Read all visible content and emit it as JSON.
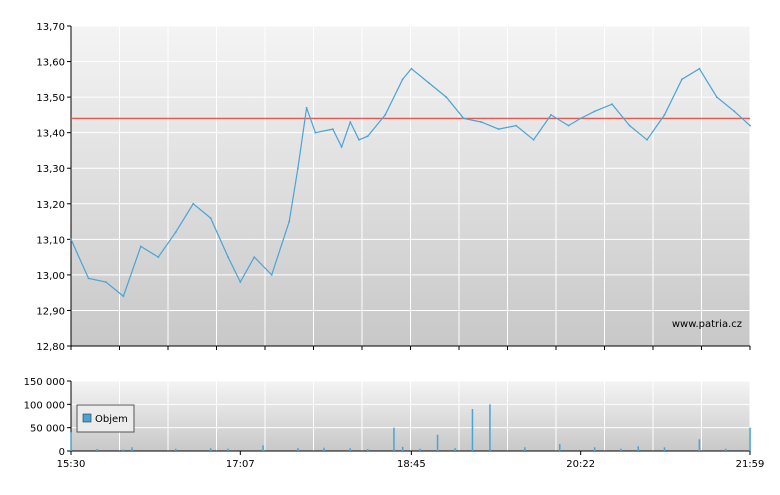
{
  "watermark": "www.patria.cz",
  "colors": {
    "price_line": "#4aa3d6",
    "reference_line": "#e05a4f",
    "volume_bar": "#4aa3d6",
    "plot_bg_top": "#f4f4f4",
    "plot_bg_bottom": "#c8c8c8",
    "grid": "#ffffff"
  },
  "chart_data": [
    {
      "type": "line",
      "title": "",
      "xlabel": "",
      "ylabel": "",
      "ylim": [
        12.8,
        13.7
      ],
      "y_ticks": [
        "12,80",
        "12,90",
        "13,00",
        "13,10",
        "13,20",
        "13,30",
        "13,40",
        "13,50",
        "13,60",
        "13,70"
      ],
      "reference_line": 13.44,
      "grid": true,
      "series": [
        {
          "x": [
            "15:30",
            "15:40",
            "15:50",
            "16:00",
            "16:10",
            "16:20",
            "16:30",
            "16:40",
            "16:50",
            "17:00",
            "17:07",
            "17:15",
            "17:25",
            "17:35",
            "17:40",
            "17:45",
            "17:50",
            "18:00",
            "18:05",
            "18:10",
            "18:15",
            "18:20",
            "18:30",
            "18:40",
            "18:45",
            "18:55",
            "19:05",
            "19:15",
            "19:25",
            "19:35",
            "19:45",
            "19:55",
            "20:05",
            "20:15",
            "20:22",
            "20:30",
            "20:40",
            "20:50",
            "21:00",
            "21:10",
            "21:20",
            "21:30",
            "21:40",
            "21:50",
            "21:59"
          ],
          "values": [
            13.1,
            12.99,
            12.98,
            12.94,
            13.08,
            13.05,
            13.12,
            13.2,
            13.16,
            13.05,
            12.98,
            13.05,
            13.0,
            13.15,
            13.3,
            13.47,
            13.4,
            13.41,
            13.36,
            13.43,
            13.38,
            13.39,
            13.45,
            13.55,
            13.58,
            13.54,
            13.5,
            13.44,
            13.43,
            13.41,
            13.42,
            13.38,
            13.45,
            13.42,
            13.44,
            13.46,
            13.48,
            13.42,
            13.38,
            13.45,
            13.55,
            13.58,
            13.5,
            13.46,
            13.42
          ]
        }
      ]
    },
    {
      "type": "bar",
      "title": "",
      "ylim": [
        0,
        150000
      ],
      "y_ticks": [
        "0",
        "50 000",
        "100 000",
        "150 000"
      ],
      "x_ticks": [
        "15:30",
        "17:07",
        "18:45",
        "20:22",
        "21:59"
      ],
      "legend": [
        "Objem"
      ],
      "legend_position": "left",
      "series": [
        {
          "name": "Objem",
          "x": [
            "15:30",
            "15:45",
            "16:00",
            "16:05",
            "16:30",
            "16:50",
            "17:00",
            "17:20",
            "17:40",
            "17:55",
            "18:10",
            "18:20",
            "18:35",
            "18:40",
            "18:50",
            "19:00",
            "19:10",
            "19:20",
            "19:30",
            "19:50",
            "20:10",
            "20:30",
            "20:45",
            "20:55",
            "21:10",
            "21:30",
            "21:45",
            "21:59"
          ],
          "values": [
            40000,
            4000,
            3000,
            8000,
            5000,
            6000,
            5000,
            12000,
            6000,
            7000,
            6000,
            4000,
            50000,
            9000,
            5000,
            35000,
            6000,
            90000,
            100000,
            8000,
            15000,
            8000,
            5000,
            10000,
            8000,
            25000,
            5000,
            50000
          ]
        }
      ]
    }
  ]
}
